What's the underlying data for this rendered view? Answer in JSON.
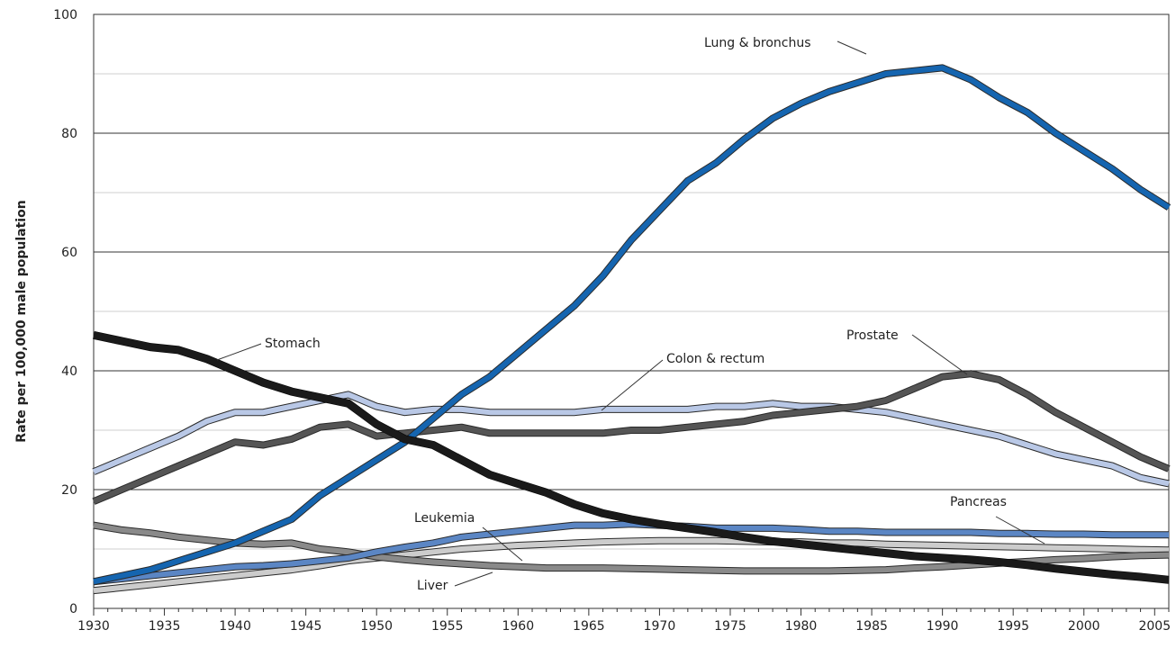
{
  "chart_data": {
    "type": "line",
    "title": "",
    "xlabel": "",
    "ylabel": "Rate per 100,000 male population",
    "xlim": [
      1930,
      2006
    ],
    "ylim": [
      0,
      100
    ],
    "x_ticks": [
      1930,
      1935,
      1940,
      1945,
      1950,
      1955,
      1960,
      1965,
      1970,
      1975,
      1980,
      1985,
      1990,
      1995,
      2000,
      2005
    ],
    "y_ticks": [
      0,
      20,
      40,
      60,
      80,
      100
    ],
    "grid": "horizontal",
    "colors": {
      "lung": "#1565b0",
      "stomach": "#1a1a1a",
      "prostate": "#555555",
      "colon": "#b9c8e6",
      "pancreas": "#5b86c4",
      "leukemia": "#cccccc",
      "liver": "#8a8a8a"
    },
    "x": [
      1930,
      1932,
      1934,
      1936,
      1938,
      1940,
      1942,
      1944,
      1946,
      1948,
      1950,
      1952,
      1954,
      1956,
      1958,
      1960,
      1962,
      1964,
      1966,
      1968,
      1970,
      1972,
      1974,
      1976,
      1978,
      1980,
      1982,
      1984,
      1986,
      1988,
      1990,
      1992,
      1994,
      1996,
      1998,
      2000,
      2002,
      2004,
      2006
    ],
    "series": [
      {
        "key": "lung",
        "name": "Lung & bronchus",
        "values": [
          4.5,
          5.5,
          6.5,
          8,
          9.5,
          11,
          13,
          15,
          19,
          22,
          25,
          28,
          32,
          36,
          39,
          43,
          47,
          51,
          56,
          62,
          67,
          72,
          75,
          79,
          82.5,
          85,
          87,
          88.5,
          90,
          90.5,
          91,
          89,
          86,
          83.5,
          80,
          77,
          74,
          70.5,
          67.5
        ]
      },
      {
        "key": "stomach",
        "name": "Stomach",
        "values": [
          46,
          45,
          44,
          43.5,
          42,
          40,
          38,
          36.5,
          35.5,
          34.5,
          31,
          28.5,
          27.5,
          25,
          22.5,
          21,
          19.5,
          17.5,
          16,
          15,
          14.2,
          13.5,
          12.8,
          12,
          11.3,
          10.8,
          10.3,
          9.8,
          9.3,
          8.8,
          8.5,
          8.2,
          7.8,
          7.3,
          6.7,
          6.2,
          5.7,
          5.3,
          4.8
        ]
      },
      {
        "key": "prostate",
        "name": "Prostate",
        "values": [
          18,
          20,
          22,
          24,
          26,
          28,
          27.5,
          28.5,
          30.5,
          31,
          29,
          29.5,
          30,
          30.5,
          29.5,
          29.5,
          29.5,
          29.5,
          29.5,
          30,
          30,
          30.5,
          31,
          31.5,
          32.5,
          33,
          33.5,
          34,
          35,
          37,
          39,
          39.5,
          38.5,
          36,
          33,
          30.5,
          28,
          25.5,
          23.5
        ]
      },
      {
        "key": "colon",
        "name": "Colon & rectum",
        "values": [
          23,
          25,
          27,
          29,
          31.5,
          33,
          33,
          34,
          35,
          36,
          34,
          33,
          33.5,
          33.5,
          33,
          33,
          33,
          33,
          33.5,
          33.5,
          33.5,
          33.5,
          34,
          34,
          34.5,
          34,
          34,
          33.5,
          33,
          32,
          31,
          30,
          29,
          27.5,
          26,
          25,
          24,
          22,
          21
        ]
      },
      {
        "key": "pancreas",
        "name": "Pancreas",
        "values": [
          4.5,
          5,
          5.5,
          6,
          6.5,
          7,
          7.2,
          7.5,
          8,
          8.5,
          9.5,
          10.3,
          11,
          12,
          12.5,
          13,
          13.5,
          14,
          14,
          14.2,
          14,
          13.8,
          13.5,
          13.5,
          13.5,
          13.3,
          13,
          13,
          12.8,
          12.8,
          12.8,
          12.8,
          12.6,
          12.6,
          12.5,
          12.5,
          12.4,
          12.4,
          12.4
        ]
      },
      {
        "key": "leukemia",
        "name": "Leukemia",
        "values": [
          3,
          3.5,
          4,
          4.5,
          5,
          5.5,
          6,
          6.5,
          7.2,
          8,
          8.5,
          9,
          9.5,
          10,
          10.3,
          10.6,
          10.8,
          11,
          11.2,
          11.3,
          11.4,
          11.4,
          11.4,
          11.3,
          11.2,
          11.2,
          11,
          11,
          10.8,
          10.7,
          10.6,
          10.5,
          10.4,
          10.3,
          10.2,
          10.1,
          10,
          9.9,
          9.8
        ]
      },
      {
        "key": "liver",
        "name": "Liver",
        "values": [
          14,
          13.2,
          12.7,
          12,
          11.5,
          11,
          10.8,
          11,
          10,
          9.5,
          8.7,
          8.2,
          7.8,
          7.5,
          7.2,
          7,
          6.8,
          6.8,
          6.8,
          6.7,
          6.6,
          6.5,
          6.4,
          6.3,
          6.3,
          6.3,
          6.3,
          6.4,
          6.5,
          6.8,
          7,
          7.3,
          7.6,
          7.9,
          8.2,
          8.4,
          8.7,
          8.9,
          9
        ]
      }
    ],
    "annotations": [
      {
        "key": "lung",
        "text": "Lung & bronchus",
        "x": 1985.7,
        "y": 88.6
      },
      {
        "key": "stomach",
        "text": "Stomach",
        "x": 1945.5,
        "y": 35.3
      },
      {
        "key": "prostate",
        "text": "Prostate",
        "x": 1983.1,
        "y": 42.4
      },
      {
        "key": "colon",
        "text": "Colon & rectum",
        "x": 1971.4,
        "y": 37.8
      },
      {
        "key": "pancreas",
        "text": "Pancreas",
        "x": 1997.3,
        "y": 18.1
      },
      {
        "key": "leukemia",
        "text": "Leukemia",
        "x": 1963.4,
        "y": 17.0
      },
      {
        "key": "liver",
        "text": "Liver",
        "x": 1955.4,
        "y": 1.3
      }
    ]
  }
}
